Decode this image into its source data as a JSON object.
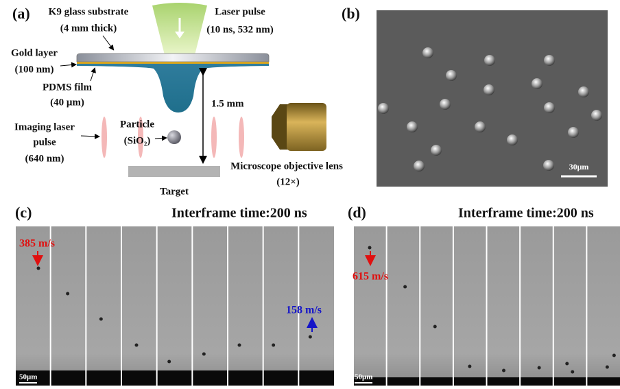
{
  "panel_a": {
    "label": "(a)",
    "substrate": {
      "name": "K9 glass substrate",
      "thickness": "(4 mm thick)"
    },
    "laser": {
      "name": "Laser pulse",
      "spec": "(10 ns, 532 nm)"
    },
    "gold": {
      "name": "Gold layer",
      "thickness": "(100 nm)"
    },
    "pdms": {
      "name": "PDMS film",
      "thickness": "(40 μm)"
    },
    "gap": "1.5 mm",
    "imaging": {
      "line1": "Imaging laser",
      "line2": "pulse",
      "spec": "(640 nm)"
    },
    "particle": {
      "name": "Particle",
      "material": "(SiO₂)"
    },
    "objective": {
      "name": "Microscope objective lens",
      "magnification": "(12×)"
    },
    "target": "Target"
  },
  "panel_b": {
    "label": "(b)",
    "scale_bar": "30μm"
  },
  "panel_c": {
    "label": "(c)",
    "title": "Interframe time:200 ns",
    "speed_in": "385 m/s",
    "speed_out": "158 m/s",
    "scale_bar": "50μm"
  },
  "panel_d": {
    "label": "(d)",
    "title": "Interframe time:200 ns",
    "speed_in": "615 m/s",
    "scale_bar": "50μm"
  }
}
